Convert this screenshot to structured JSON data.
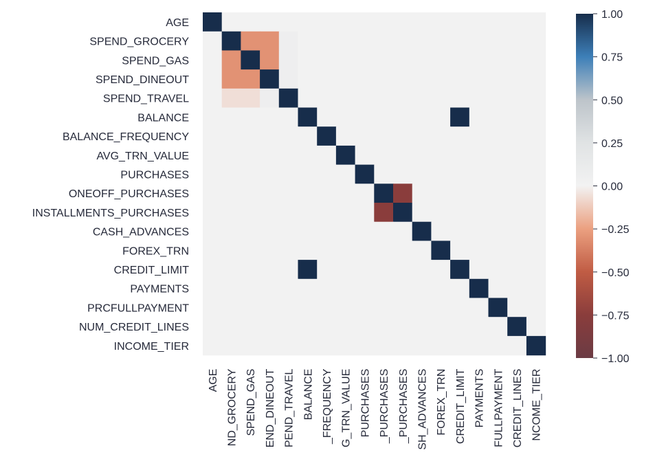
{
  "chart_data": {
    "type": "heatmap",
    "title": "",
    "xlabel": "",
    "ylabel": "",
    "labels": [
      "AGE",
      "SPEND_GROCERY",
      "SPEND_GAS",
      "SPEND_DINEOUT",
      "SPEND_TRAVEL",
      "BALANCE",
      "BALANCE_FREQUENCY",
      "AVG_TRN_VALUE",
      "PURCHASES",
      "ONEOFF_PURCHASES",
      "INSTALLMENTS_PURCHASES",
      "CASH_ADVANCES",
      "FOREX_TRN",
      "CREDIT_LIMIT",
      "PAYMENTS",
      "PRCFULLPAYMENT",
      "NUM_CREDIT_LINES",
      "INCOME_TIER"
    ],
    "x_tick_labels": [
      "AGE",
      "ND_GROCERY",
      "SPEND_GAS",
      "END_DINEOUT",
      "PEND_TRAVEL",
      "BALANCE",
      "_FREQUENCY",
      "G_TRN_VALUE",
      "PURCHASES",
      "_PURCHASES",
      "_PURCHASES",
      "SH_ADVANCES",
      "FOREX_TRN",
      "CREDIT_LIMIT",
      "PAYMENTS",
      "FULLPAYMENT",
      "CREDIT_LINES",
      "NCOME_TIER"
    ],
    "matrix": [
      [
        1,
        0,
        0,
        0,
        0,
        0,
        0,
        0,
        0,
        0,
        0,
        0,
        0,
        0,
        0,
        0,
        0,
        0
      ],
      [
        0,
        1,
        -0.3,
        -0.3,
        0.06,
        0,
        0,
        0,
        0,
        0,
        0,
        0,
        0,
        0,
        0,
        0,
        0,
        0
      ],
      [
        0,
        -0.3,
        1,
        -0.3,
        0.06,
        0,
        0,
        0,
        0,
        0,
        0,
        0,
        0,
        0,
        0,
        0,
        0,
        0
      ],
      [
        0,
        -0.3,
        -0.3,
        1,
        0.06,
        0,
        0,
        0,
        0,
        0,
        0,
        0,
        0,
        0,
        0,
        0,
        0,
        0
      ],
      [
        0,
        -0.06,
        -0.06,
        0.06,
        1,
        0,
        0,
        0,
        0,
        0,
        0,
        0,
        0,
        0,
        0,
        0,
        0,
        0
      ],
      [
        0,
        0,
        0,
        0,
        0,
        1,
        0,
        0,
        0,
        0,
        0,
        0,
        0,
        1,
        0,
        0,
        0,
        0
      ],
      [
        0,
        0,
        0,
        0,
        0,
        0,
        1,
        0,
        0,
        0,
        0,
        0,
        0,
        0,
        0,
        0,
        0,
        0
      ],
      [
        0,
        0,
        0,
        0,
        0,
        0,
        0,
        1,
        0,
        0,
        0,
        0,
        0,
        0,
        0,
        0,
        0,
        0
      ],
      [
        0,
        0,
        0,
        0,
        0,
        0,
        0,
        0,
        1,
        0,
        0,
        0,
        0,
        0,
        0,
        0,
        0,
        0
      ],
      [
        0,
        0,
        0,
        0,
        0,
        0,
        0,
        0,
        0,
        1,
        -0.75,
        0,
        0,
        0,
        0,
        0,
        0,
        0
      ],
      [
        0,
        0,
        0,
        0,
        0,
        0,
        0,
        0,
        0,
        -0.75,
        1,
        0,
        0,
        0,
        0,
        0,
        0,
        0
      ],
      [
        0,
        0,
        0,
        0,
        0,
        0,
        0,
        0,
        0,
        0,
        0,
        1,
        0,
        0,
        0,
        0,
        0,
        0
      ],
      [
        0,
        0,
        0,
        0,
        0,
        0,
        0,
        0,
        0,
        0,
        0,
        0,
        1,
        0,
        0,
        0,
        0,
        0
      ],
      [
        0,
        0,
        0,
        0,
        0,
        1,
        0,
        0,
        0,
        0,
        0,
        0,
        0,
        1,
        0,
        0,
        0,
        0
      ],
      [
        0,
        0,
        0,
        0,
        0,
        0,
        0,
        0,
        0,
        0,
        0,
        0,
        0,
        0,
        1,
        0,
        0,
        0
      ],
      [
        0,
        0,
        0,
        0,
        0,
        0,
        0,
        0,
        0,
        0,
        0,
        0,
        0,
        0,
        0,
        1,
        0,
        0
      ],
      [
        0,
        0,
        0,
        0,
        0,
        0,
        0,
        0,
        0,
        0,
        0,
        0,
        0,
        0,
        0,
        0,
        1,
        0
      ],
      [
        0,
        0,
        0,
        0,
        0,
        0,
        0,
        0,
        0,
        0,
        0,
        0,
        0,
        0,
        0,
        0,
        0,
        1
      ]
    ],
    "vmin": -1.0,
    "vmax": 1.0,
    "colorbar_ticks": [
      1.0,
      0.75,
      0.5,
      0.25,
      0.0,
      -0.25,
      -0.5,
      -0.75,
      -1.0
    ],
    "colorbar_tick_labels": [
      "1.00",
      "0.75",
      "0.50",
      "0.25",
      "0.00",
      "−0.25",
      "−0.50",
      "−0.75",
      "−1.00"
    ],
    "colormap_stops": [
      {
        "v": -1.0,
        "color": "#6b3b44"
      },
      {
        "v": -0.75,
        "color": "#8a3d3c"
      },
      {
        "v": -0.5,
        "color": "#c05c44"
      },
      {
        "v": -0.25,
        "color": "#eba080"
      },
      {
        "v": 0.0,
        "color": "#f2f2f2"
      },
      {
        "v": 0.25,
        "color": "#e0e3e4"
      },
      {
        "v": 0.5,
        "color": "#bdc4ca"
      },
      {
        "v": 0.75,
        "color": "#3d7fb8"
      },
      {
        "v": 1.0,
        "color": "#172d4b"
      }
    ],
    "grid": false,
    "legend": "colorbar-right"
  }
}
